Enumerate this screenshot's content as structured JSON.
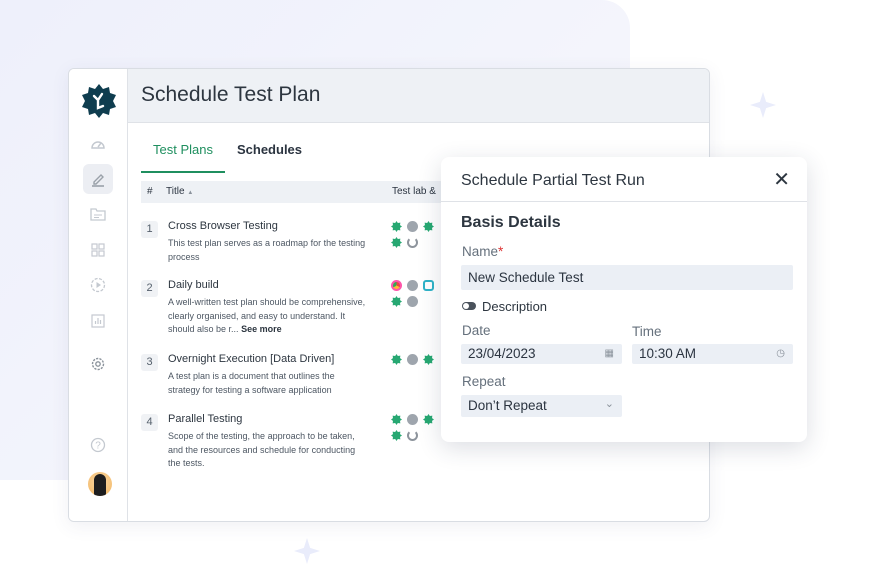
{
  "header": {
    "title": "Schedule Test Plan"
  },
  "tabs": [
    {
      "label": "Test Plans",
      "active": true
    },
    {
      "label": "Schedules",
      "active": false
    }
  ],
  "table": {
    "columns": {
      "num": "#",
      "title": "Title",
      "title_sort": "▲",
      "lab": "Test lab &"
    },
    "rows": [
      {
        "num": "1",
        "title": "Cross Browser Testing",
        "desc": "This test plan serves as a roadmap for the testing process",
        "more": ""
      },
      {
        "num": "2",
        "title": "Daily build",
        "desc": "A well-written test plan should be comprehensive, clearly organised, and easy to understand. It should also be r...",
        "more": "See more"
      },
      {
        "num": "3",
        "title": "Overnight Execution [Data Driven]",
        "desc": "A test plan is a document that outlines the strategy for testing a software application",
        "more": ""
      },
      {
        "num": "4",
        "title": "Parallel Testing",
        "desc": "Scope of the testing, the approach to be taken, and the resources and schedule for conducting the tests.",
        "more": ""
      }
    ]
  },
  "sidebar": {
    "items": [
      "dashboard-icon",
      "edit-icon",
      "folder-icon",
      "grid-icon",
      "play-icon",
      "chart-icon",
      "settings-icon",
      "help-icon"
    ],
    "active": "edit-icon"
  },
  "modal": {
    "title": "Schedule Partial Test Run",
    "section": "Basis Details",
    "name_label": "Name",
    "required": "*",
    "name_value": "New Schedule Test",
    "description_toggle": "Description",
    "date_label": "Date",
    "date_value": "23/04/2023",
    "time_label": "Time",
    "time_value": "10:30 AM",
    "repeat_label": "Repeat",
    "repeat_value": "Don’t Repeat"
  },
  "colors": {
    "accent": "#1f8f5f",
    "logo": "#0f3d4f"
  }
}
